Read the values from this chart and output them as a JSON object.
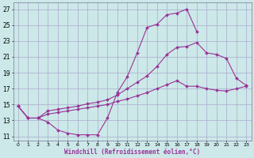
{
  "background_color": "#cce8e8",
  "grid_color": "#aaaacc",
  "line_color": "#993399",
  "xlabel": "Windchill (Refroidissement éolien,°C)",
  "ylabel_ticks": [
    11,
    13,
    15,
    17,
    19,
    21,
    23,
    25,
    27
  ],
  "xtick_labels": [
    "0",
    "1",
    "2",
    "3",
    "4",
    "5",
    "6",
    "7",
    "8",
    "9",
    "10",
    "11",
    "12",
    "13",
    "14",
    "15",
    "16",
    "17",
    "18",
    "19",
    "20",
    "21",
    "22",
    "23"
  ],
  "xlim": [
    -0.5,
    23.5
  ],
  "ylim": [
    10.5,
    27.8
  ],
  "line1_x": [
    0,
    1,
    2,
    3,
    4,
    5,
    6,
    7,
    8,
    9,
    10,
    11,
    12,
    13,
    14,
    15,
    16,
    17,
    18
  ],
  "line1_y": [
    14.8,
    13.3,
    13.3,
    12.8,
    11.8,
    11.4,
    11.2,
    11.2,
    11.2,
    13.3,
    16.5,
    18.5,
    21.5,
    24.7,
    25.1,
    26.3,
    26.5,
    27.0,
    24.2
  ],
  "line2_x": [
    0,
    1,
    2,
    3,
    4,
    5,
    6,
    7,
    8,
    9,
    10,
    11,
    12,
    13,
    14,
    15,
    16,
    17,
    18,
    19,
    20,
    21,
    22,
    23
  ],
  "line2_y": [
    14.8,
    13.3,
    13.3,
    14.2,
    14.4,
    14.6,
    14.8,
    15.1,
    15.3,
    15.6,
    16.2,
    17.0,
    17.8,
    18.6,
    19.8,
    21.3,
    22.2,
    22.3,
    22.8,
    21.5,
    21.3,
    20.8,
    18.3,
    17.4
  ],
  "line3_x": [
    0,
    1,
    2,
    3,
    4,
    5,
    6,
    7,
    8,
    9,
    10,
    11,
    12,
    13,
    14,
    15,
    16,
    17,
    18,
    19,
    20,
    21,
    22,
    23
  ],
  "line3_y": [
    14.8,
    13.3,
    13.3,
    13.8,
    14.0,
    14.2,
    14.4,
    14.6,
    14.8,
    15.0,
    15.4,
    15.7,
    16.1,
    16.5,
    17.0,
    17.5,
    18.0,
    17.3,
    17.3,
    17.0,
    16.8,
    16.7,
    17.0,
    17.3
  ]
}
